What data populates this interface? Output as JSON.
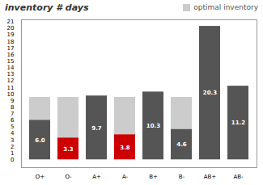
{
  "chart_data": {
    "type": "bar",
    "title": "inventory # days",
    "categories": [
      "O+",
      "O-",
      "A+",
      "A-",
      "B+",
      "B-",
      "AB+",
      "AB-"
    ],
    "values": [
      6.0,
      3.3,
      9.7,
      3.8,
      10.3,
      4.6,
      20.3,
      11.2
    ],
    "value_labels": [
      "6.0",
      "3.3",
      "9.7",
      "3.8",
      "10.3",
      "4.6",
      "20.3",
      "11.2"
    ],
    "colors": [
      "#555555",
      "#cc0000",
      "#555555",
      "#cc0000",
      "#555555",
      "#555555",
      "#555555",
      "#555555"
    ],
    "data_labels": true,
    "optimal": {
      "name": "optimal inventory",
      "color": "#cccccc",
      "values": [
        9.5,
        9.5,
        9.7,
        9.5,
        10.3,
        9.5,
        20.3,
        11.2
      ]
    },
    "legend": "top-right",
    "grid": false,
    "ylim": [
      -1.2,
      21.3
    ],
    "yticks": [
      0,
      1,
      2,
      3,
      4,
      5,
      6,
      7,
      8,
      9,
      10,
      11,
      12,
      13,
      14,
      15,
      16,
      17,
      18,
      19,
      20,
      21
    ]
  }
}
